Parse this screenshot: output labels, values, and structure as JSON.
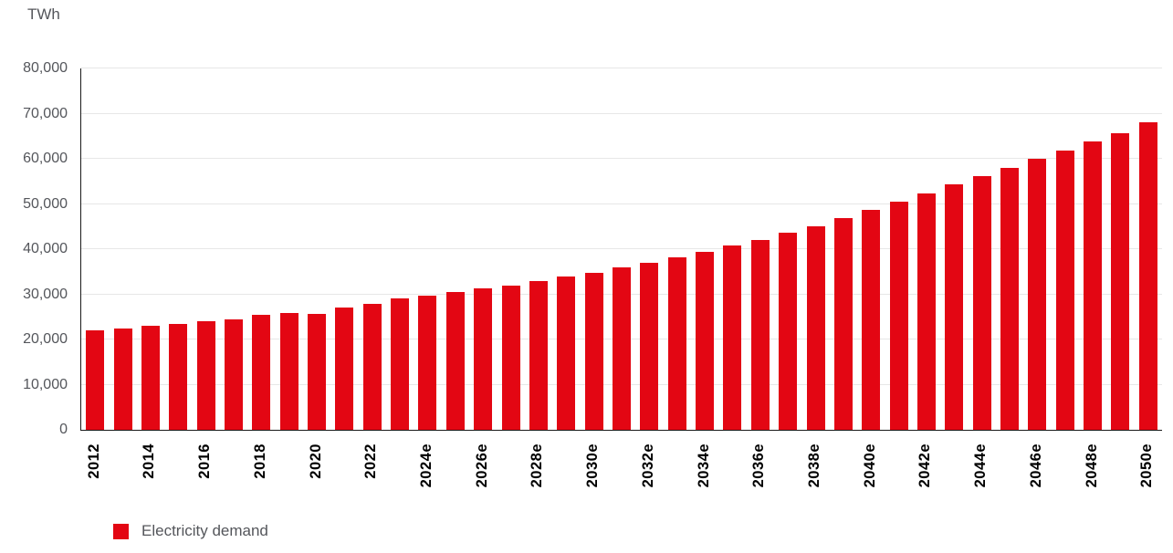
{
  "unit_label": "TWh",
  "legend": {
    "label": "Electricity demand",
    "swatch_color": "#e30613"
  },
  "colors": {
    "bar": "#e30613",
    "gridline": "#e7e7e7",
    "axis_line": "#1a1a1a",
    "axis_text": "#54565b",
    "x_tick_text": "#000000"
  },
  "chart_data": {
    "type": "bar",
    "title": "",
    "xlabel": "",
    "ylabel": "TWh",
    "ylim": [
      0,
      80000
    ],
    "ytick_step": 10000,
    "ytick_labels": [
      "0",
      "10,000",
      "20,000",
      "30,000",
      "40,000",
      "50,000",
      "60,000",
      "70,000",
      "80,000"
    ],
    "grid": "horizontal",
    "legend_position": "bottom-left",
    "x_label_every": 2,
    "categories": [
      "2012",
      "2013",
      "2014",
      "2015",
      "2016",
      "2017",
      "2018",
      "2019",
      "2020",
      "2021",
      "2022",
      "2023",
      "2024e",
      "2025e",
      "2026e",
      "2027e",
      "2028e",
      "2029e",
      "2030e",
      "2031e",
      "2032e",
      "2033e",
      "2034e",
      "2035e",
      "2036e",
      "2037e",
      "2038e",
      "2039e",
      "2040e",
      "2041e",
      "2042e",
      "2043e",
      "2044e",
      "2045e",
      "2046e",
      "2047e",
      "2048e",
      "2049e",
      "2050e"
    ],
    "values": [
      22000,
      22400,
      23000,
      23400,
      24100,
      24400,
      25500,
      25900,
      25700,
      27100,
      27900,
      29000,
      29800,
      30500,
      31300,
      32000,
      33000,
      33900,
      34800,
      35900,
      37000,
      38100,
      39300,
      40800,
      42100,
      43600,
      45100,
      46900,
      48700,
      50500,
      52300,
      54300,
      56100,
      58000,
      60000,
      61800,
      63800,
      65700,
      68100
    ],
    "series_name": "Electricity demand"
  }
}
